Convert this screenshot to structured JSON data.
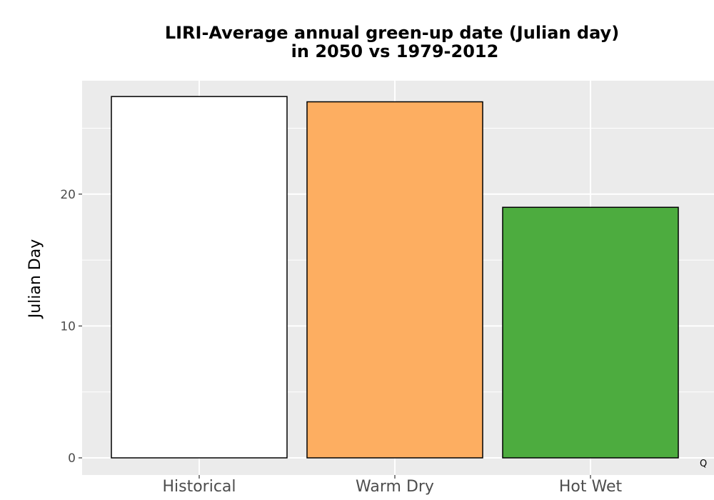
{
  "chart_data": {
    "type": "bar",
    "title_lines": [
      "LIRI-Average annual green-up date (Julian day)",
      "in 2050 vs 1979-2012"
    ],
    "xlabel": "",
    "ylabel": "Julian Day",
    "categories": [
      "Historical",
      "Warm Dry",
      "Hot Wet"
    ],
    "values": [
      27.4,
      27.0,
      19.0
    ],
    "bar_colors": [
      "#ffffff",
      "#fdae61",
      "#4dac3f"
    ],
    "bar_outline_color": "#000000",
    "ylim": [
      -1.3,
      28.6
    ],
    "yticks": [
      0,
      10,
      20
    ],
    "ytick_labels": [
      "0",
      "10",
      "20"
    ],
    "grid": true,
    "panel_background": "#ebebeb",
    "corner_mark": "Q"
  }
}
